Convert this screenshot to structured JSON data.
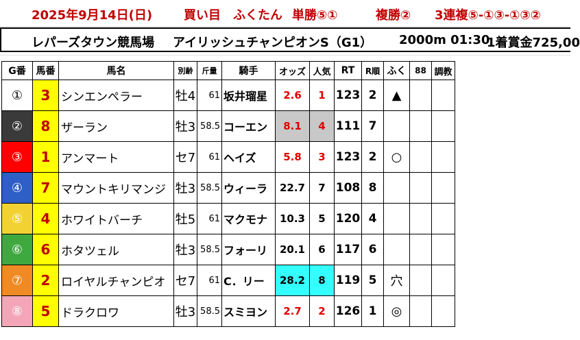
{
  "header": {
    "date": "2025年9月14日(日)",
    "bet_label": "買い目",
    "fukutan": "ふくたん",
    "tansho": "単勝⑤①",
    "fukusho": "複勝②",
    "sanrenpuku": "3連複⑤-①③-①③②"
  },
  "race": {
    "course": "レパーズタウン競馬場",
    "name": "アイリッシュチャンピオンS（G1）",
    "distance_time": "2000m 01:30",
    "prize": "1着賞金725,00"
  },
  "columns": [
    "G番",
    "馬番",
    "馬名",
    "別齢",
    "斤量",
    "騎手",
    "オッズ",
    "人気",
    "RT",
    "R順",
    "ふく",
    "88",
    "調教"
  ],
  "horses": [
    {
      "gate": "①",
      "num": "3",
      "name": "シンエンペラー",
      "age": "牡4",
      "weight": "61",
      "jockey": "坂井瑠星",
      "odds": "2.6",
      "pop": "1",
      "rt": "123",
      "rank": "2",
      "mark": "▲"
    },
    {
      "gate": "②",
      "num": "8",
      "name": "ザーラン",
      "age": "牡3",
      "weight": "58.5",
      "jockey": "コーエン",
      "odds": "8.1",
      "pop": "4",
      "rt": "111",
      "rank": "7",
      "mark": ""
    },
    {
      "gate": "③",
      "num": "1",
      "name": "アンマート",
      "age": "セ7",
      "weight": "61",
      "jockey": "ヘイズ",
      "odds": "5.8",
      "pop": "3",
      "rt": "123",
      "rank": "2",
      "mark": "○"
    },
    {
      "gate": "④",
      "num": "7",
      "name": "マウントキリマンジ",
      "age": "牡3",
      "weight": "58.5",
      "jockey": "ウィーラ",
      "odds": "22.7",
      "pop": "7",
      "rt": "108",
      "rank": "8",
      "mark": ""
    },
    {
      "gate": "⑤",
      "num": "4",
      "name": "ホワイトバーチ",
      "age": "牡5",
      "weight": "61",
      "jockey": "マクモナ",
      "odds": "10.3",
      "pop": "5",
      "rt": "120",
      "rank": "4",
      "mark": ""
    },
    {
      "gate": "⑥",
      "num": "6",
      "name": "ホタツェル",
      "age": "牡3",
      "weight": "58.5",
      "jockey": "フォーリ",
      "odds": "20.1",
      "pop": "6",
      "rt": "117",
      "rank": "6",
      "mark": ""
    },
    {
      "gate": "⑦",
      "num": "2",
      "name": "ロイヤルチャンピオ",
      "age": "セ7",
      "weight": "61",
      "jockey": "C．リー",
      "odds": "28.2",
      "pop": "8",
      "rt": "119",
      "rank": "5",
      "mark": "穴"
    },
    {
      "gate": "⑧",
      "num": "5",
      "name": "ドラクロワ",
      "age": "牡3",
      "weight": "58.5",
      "jockey": "スミヨン",
      "odds": "2.7",
      "pop": "2",
      "rt": "126",
      "rank": "1",
      "mark": "◎"
    }
  ],
  "colors": {
    "gate_bg": [
      "#ffffff",
      "#3a3a3a",
      "#ff0000",
      "#2e5fc6",
      "#f2d233",
      "#3fa83f",
      "#f08a24",
      "#f4a6b8"
    ],
    "gate_fg": [
      "#000000",
      "#ffffff",
      "#ffffff",
      "#ffffff",
      "#ffffff",
      "#ffffff",
      "#ffffff",
      "#ffffff"
    ],
    "num_bg": "#ffff00",
    "odds_red_rows": [
      0,
      1,
      2,
      7
    ],
    "gray_rows": [
      1
    ],
    "cyan_rows": [
      6
    ]
  }
}
